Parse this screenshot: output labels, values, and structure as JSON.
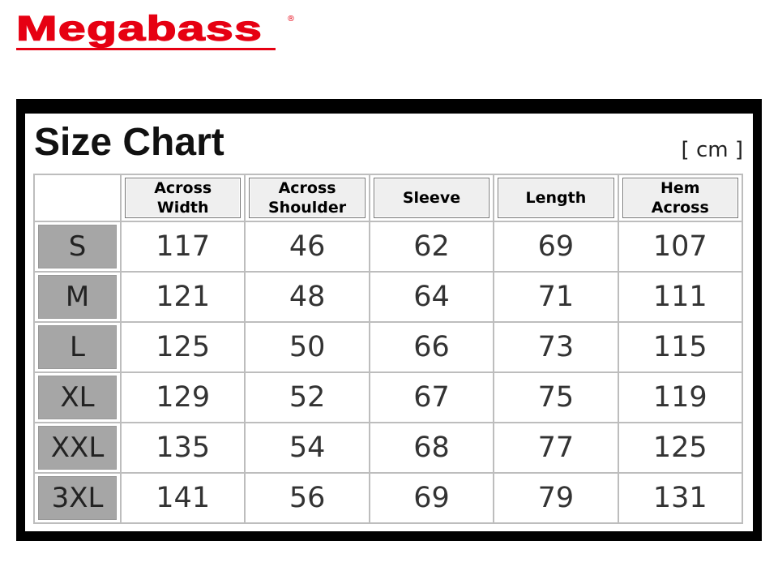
{
  "brand": {
    "name": "Megabass",
    "mark": "®",
    "color": "#e60012"
  },
  "chart": {
    "title": "Size Chart",
    "unit": "[ cm ]",
    "columns": [
      "Across\nWidth",
      "Across\nShoulder",
      "Sleeve",
      "Length",
      "Hem\nAcross"
    ],
    "rows": [
      {
        "size": "S",
        "values": [
          "117",
          "46",
          "62",
          "69",
          "107"
        ]
      },
      {
        "size": "M",
        "values": [
          "121",
          "48",
          "64",
          "71",
          "111"
        ]
      },
      {
        "size": "L",
        "values": [
          "125",
          "50",
          "66",
          "73",
          "115"
        ]
      },
      {
        "size": "XL",
        "values": [
          "129",
          "52",
          "67",
          "75",
          "119"
        ]
      },
      {
        "size": "XXL",
        "values": [
          "135",
          "54",
          "68",
          "77",
          "125"
        ]
      },
      {
        "size": "3XL",
        "values": [
          "141",
          "56",
          "69",
          "79",
          "131"
        ]
      }
    ]
  }
}
